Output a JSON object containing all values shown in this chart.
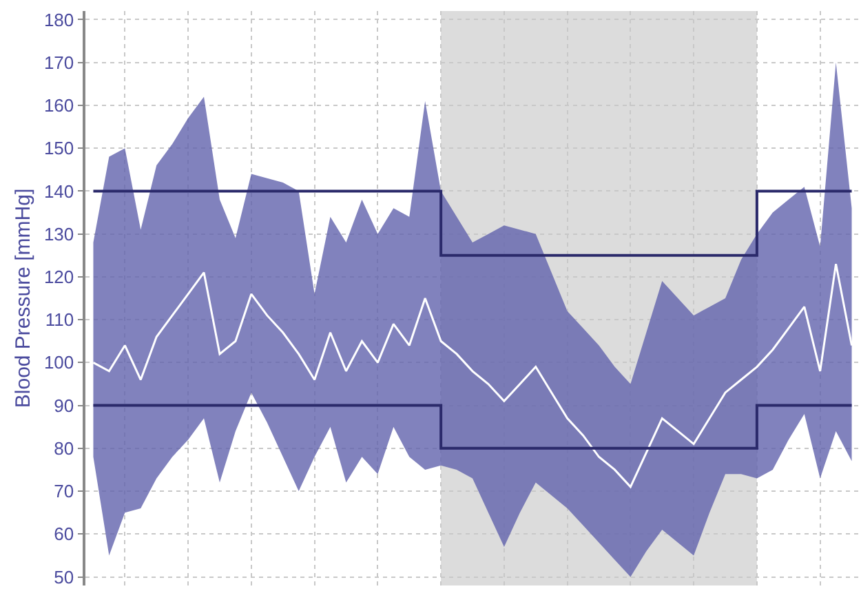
{
  "chart_data": {
    "type": "line",
    "ylabel": "Blood Pressure [mmHg]",
    "categories": [
      null,
      null,
      null,
      null,
      null,
      null,
      null,
      null,
      null,
      null,
      null,
      null,
      null,
      null,
      null,
      null,
      null,
      null,
      null,
      null,
      null,
      null,
      null,
      null,
      null,
      null,
      null,
      null,
      null,
      null,
      null,
      null,
      null,
      null,
      null,
      null,
      null,
      null,
      null,
      null,
      null,
      null,
      null,
      null,
      null,
      null,
      null,
      null,
      null
    ],
    "ylim": [
      48,
      182
    ],
    "yticks": [
      50,
      60,
      70,
      80,
      90,
      100,
      110,
      120,
      130,
      140,
      150,
      160,
      170,
      180
    ],
    "tick_labels": "y",
    "grid": true,
    "series": [
      {
        "color": "#ffffff",
        "values": [
          100,
          98,
          104,
          96,
          106,
          111,
          116,
          121,
          102,
          105,
          116,
          111,
          107,
          102,
          96,
          107,
          98,
          105,
          100,
          109,
          104,
          115,
          105,
          102,
          98,
          95,
          91,
          95,
          99,
          93,
          87,
          83,
          78,
          75,
          71,
          79,
          87,
          84,
          81,
          87,
          93,
          96,
          99,
          103,
          108,
          113,
          98,
          123,
          104
        ],
        "lower": [
          78,
          55,
          65,
          66,
          73,
          78,
          82,
          87,
          72,
          84,
          93,
          86,
          78,
          70,
          78,
          85,
          72,
          78,
          74,
          85,
          78,
          75,
          76,
          75,
          73,
          65,
          57,
          65,
          72,
          69,
          66,
          62,
          58,
          54,
          50,
          56,
          61,
          58,
          55,
          65,
          74,
          74,
          73,
          75,
          82,
          88,
          73,
          84,
          77
        ],
        "upper": [
          128,
          148,
          150,
          131,
          146,
          151,
          157,
          162,
          138,
          129,
          144,
          143,
          142,
          140,
          116,
          134,
          128,
          138,
          130,
          136,
          134,
          161,
          140,
          134,
          128,
          130,
          132,
          131,
          130,
          121,
          112,
          108,
          104,
          99,
          95,
          107,
          119,
          115,
          111,
          113,
          115,
          124,
          130,
          135,
          138,
          141,
          127,
          170,
          136
        ]
      },
      {
        "type": "step",
        "color": "#2b2a6b",
        "values": [
          140,
          140,
          140,
          140,
          140,
          140,
          140,
          140,
          140,
          140,
          140,
          140,
          140,
          140,
          140,
          140,
          140,
          140,
          140,
          140,
          140,
          140,
          125,
          125,
          125,
          125,
          125,
          125,
          125,
          125,
          125,
          125,
          125,
          125,
          125,
          125,
          125,
          125,
          125,
          125,
          125,
          125,
          140,
          140,
          140,
          140,
          140,
          140,
          140
        ]
      },
      {
        "type": "step",
        "color": "#2b2a6b",
        "values": [
          90,
          90,
          90,
          90,
          90,
          90,
          90,
          90,
          90,
          90,
          90,
          90,
          90,
          90,
          90,
          90,
          90,
          90,
          90,
          90,
          90,
          90,
          80,
          80,
          80,
          80,
          80,
          80,
          80,
          80,
          80,
          80,
          80,
          80,
          80,
          80,
          80,
          80,
          80,
          80,
          80,
          80,
          90,
          90,
          90,
          90,
          90,
          90,
          90
        ]
      }
    ]
  }
}
